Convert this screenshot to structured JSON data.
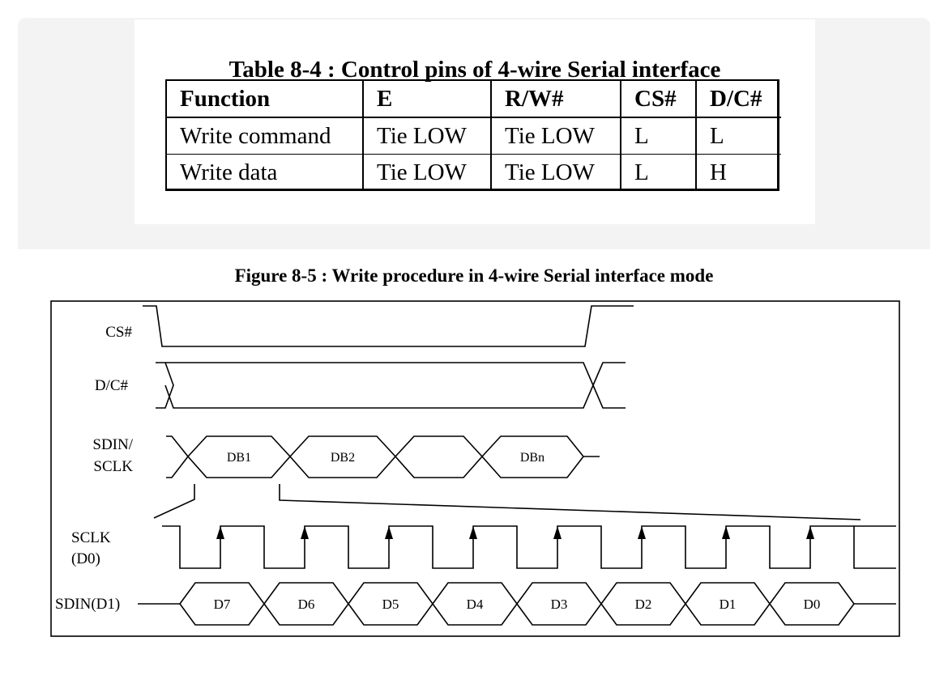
{
  "table": {
    "title": "Table 8-4 : Control pins of 4-wire Serial interface",
    "headers": [
      "Function",
      "E",
      "R/W#",
      "CS#",
      "D/C#"
    ],
    "rows": [
      [
        "Write command",
        "Tie LOW",
        "Tie LOW",
        "L",
        "L"
      ],
      [
        "Write data",
        "Tie LOW",
        "Tie LOW",
        "L",
        "H"
      ]
    ]
  },
  "figure": {
    "title": "Figure 8-5 : Write procedure in 4-wire Serial interface mode",
    "signals": {
      "cs": "CS#",
      "dc": "D/C#",
      "sdin_line1": "SDIN/",
      "sdin_line2": "SCLK",
      "sclk_line1": "SCLK",
      "sclk_line2": "(D0)",
      "sdin_d1": "SDIN(D1)"
    },
    "bytes": [
      "DB1",
      "DB2",
      "",
      "DBn"
    ],
    "bits": [
      "D7",
      "D6",
      "D5",
      "D4",
      "D3",
      "D2",
      "D1",
      "D0"
    ]
  }
}
